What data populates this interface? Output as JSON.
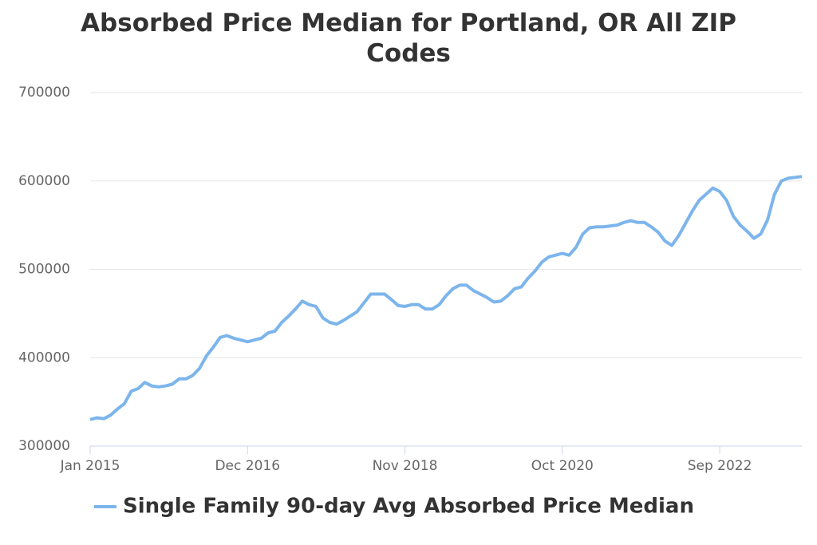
{
  "chart_data": {
    "type": "line",
    "title": "Absorbed Price Median for Portland, OR All ZIP Codes",
    "categories": [
      "Jan 2015",
      null,
      null,
      null,
      null,
      null,
      null,
      null,
      null,
      null,
      null,
      null,
      null,
      null,
      null,
      null,
      null,
      null,
      null,
      null,
      null,
      null,
      null,
      "Dec 2016",
      null,
      null,
      null,
      null,
      null,
      null,
      null,
      null,
      null,
      null,
      null,
      null,
      null,
      null,
      null,
      null,
      null,
      null,
      null,
      null,
      null,
      null,
      "Nov 2018",
      null,
      null,
      null,
      null,
      null,
      null,
      null,
      null,
      null,
      null,
      null,
      null,
      null,
      null,
      null,
      null,
      null,
      null,
      null,
      null,
      null,
      null,
      "Oct 2020",
      null,
      null,
      null,
      null,
      null,
      null,
      null,
      null,
      null,
      null,
      null,
      null,
      null,
      null,
      null,
      null,
      null,
      null,
      null,
      null,
      null,
      null,
      "Sep 2022",
      null,
      null,
      null,
      null,
      null,
      null,
      null,
      null,
      null,
      null,
      null,
      null
    ],
    "series": [
      {
        "name": "Single Family 90-day Avg Absorbed Price Median",
        "color": "#7cb5ec",
        "values": [
          330000,
          332000,
          331000,
          335000,
          342000,
          348000,
          362000,
          365000,
          372000,
          368000,
          367000,
          368000,
          370000,
          376000,
          376000,
          380000,
          388000,
          402000,
          412000,
          423000,
          425000,
          422000,
          420000,
          418000,
          420000,
          422000,
          428000,
          430000,
          440000,
          447000,
          455000,
          464000,
          460000,
          458000,
          445000,
          440000,
          438000,
          442000,
          447000,
          452000,
          462000,
          472000,
          472000,
          472000,
          466000,
          459000,
          458000,
          460000,
          460000,
          455000,
          455000,
          460000,
          470000,
          478000,
          482000,
          482000,
          476000,
          472000,
          468000,
          463000,
          464000,
          470000,
          478000,
          480000,
          490000,
          498000,
          508000,
          514000,
          516000,
          518000,
          516000,
          525000,
          540000,
          547000,
          548000,
          548000,
          549000,
          550000,
          553000,
          555000,
          553000,
          553000,
          548000,
          542000,
          532000,
          527000,
          538000,
          552000,
          566000,
          578000,
          585000,
          592000,
          588000,
          578000,
          560000,
          550000,
          543000,
          535000,
          540000,
          556000,
          585000,
          600000,
          603000,
          604000,
          605000
        ]
      }
    ],
    "ylim": [
      300000,
      700000
    ],
    "yticks": [
      300000,
      400000,
      500000,
      600000,
      700000
    ],
    "grid": true
  }
}
